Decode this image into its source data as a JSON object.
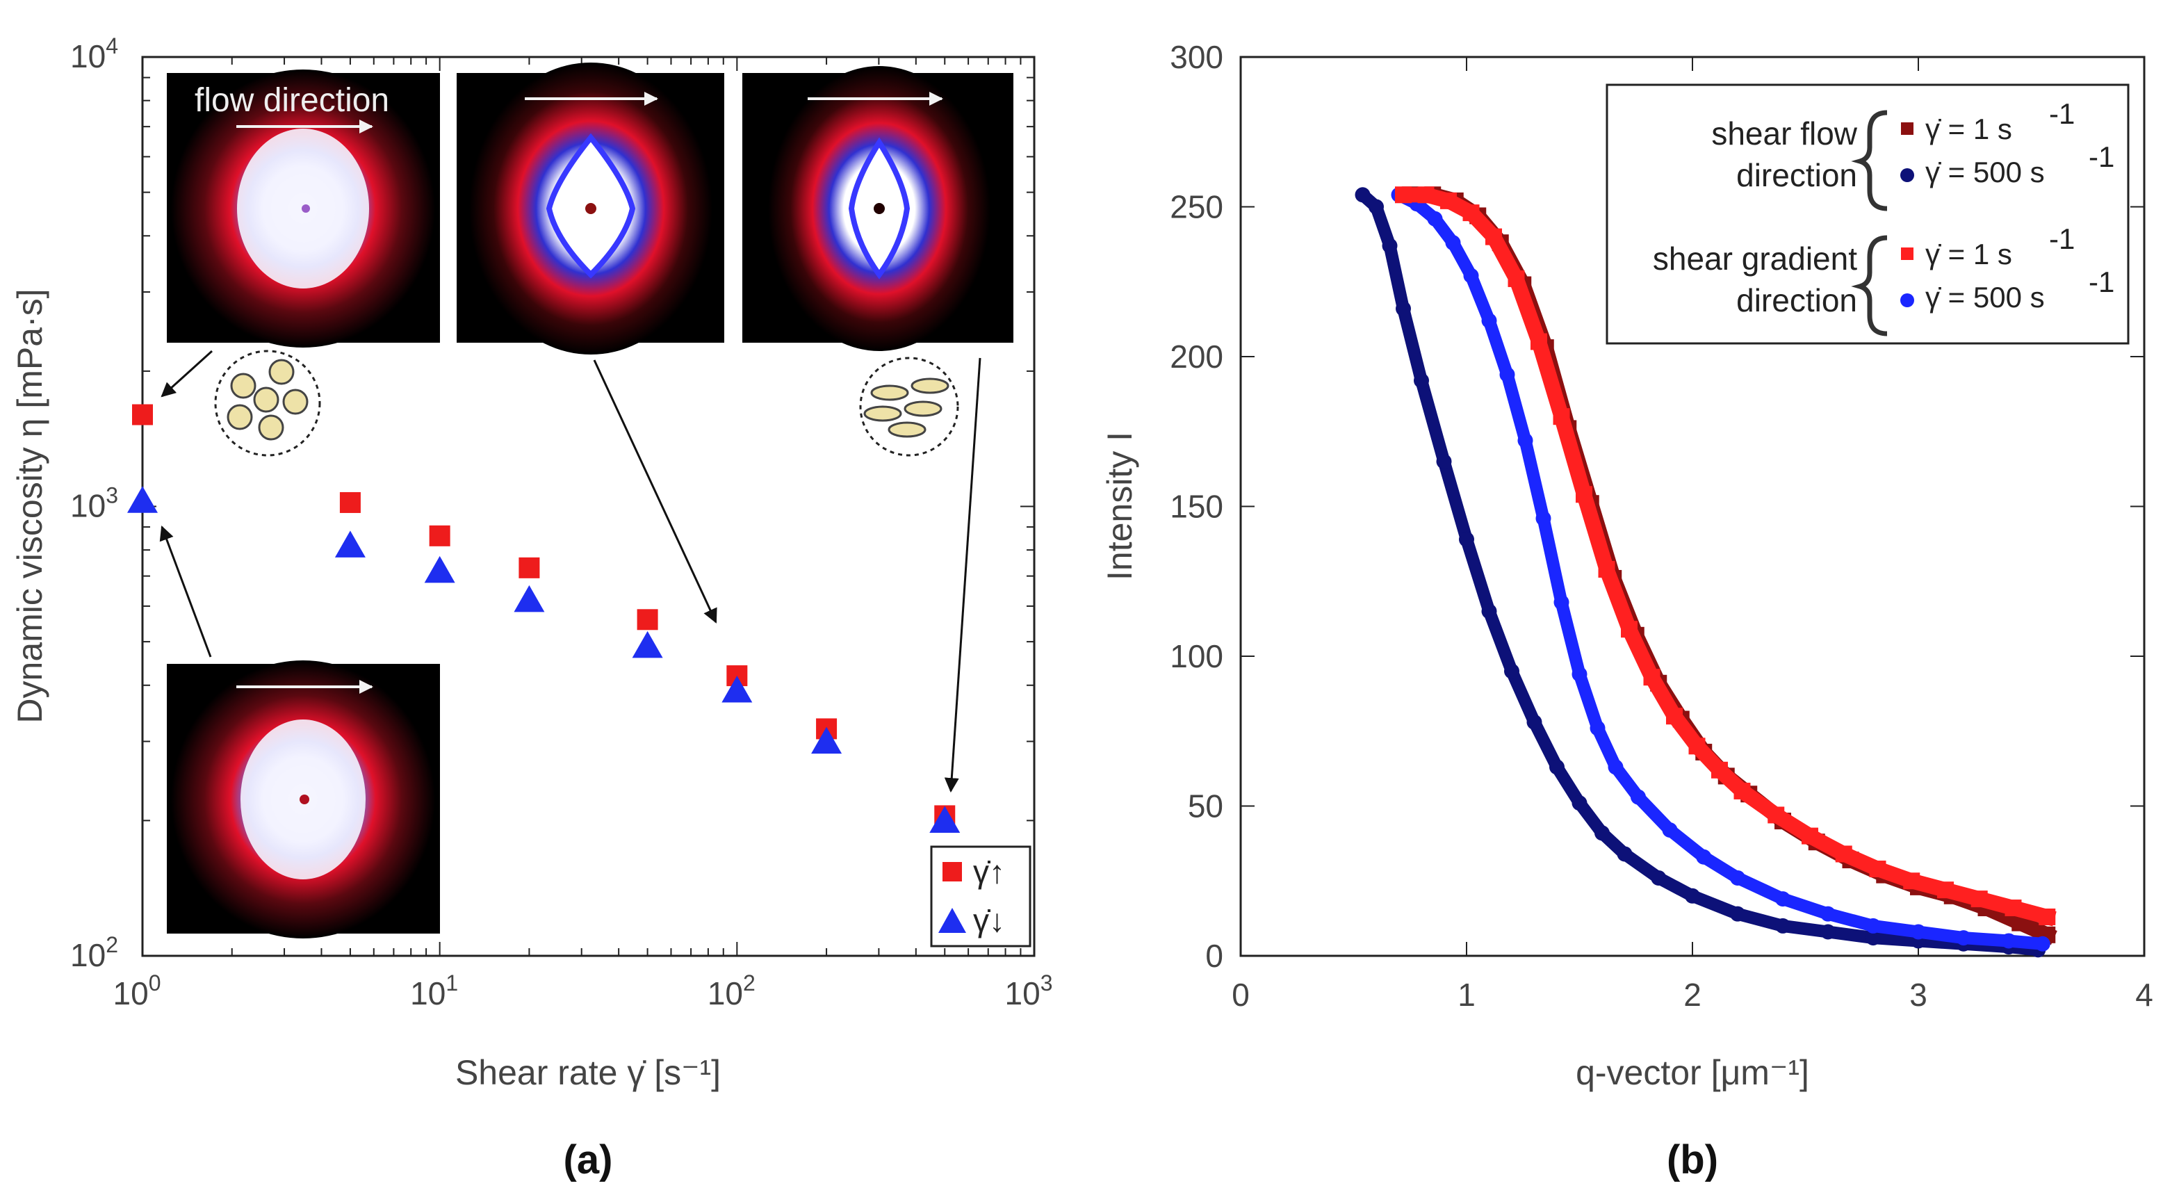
{
  "chart_data": [
    {
      "type": "scatter",
      "panel": "(a)",
      "xlabel": "Shear rate γ̇ [s⁻¹]",
      "ylabel": "Dynamic viscosity η [mPa·s]",
      "xscale": "log",
      "yscale": "log",
      "xlim": [
        1,
        1000
      ],
      "ylim": [
        100,
        10000
      ],
      "x_ticks": [
        "10^0",
        "10^1",
        "10^2",
        "10^3"
      ],
      "y_ticks": [
        "10^2",
        "10^3",
        "10^4"
      ],
      "inset_caption": "flow direction",
      "series": [
        {
          "name": "γ̇↑",
          "marker": "square",
          "color": "#ee1c1c",
          "x": [
            1,
            5,
            10,
            20,
            50,
            100,
            200,
            500
          ],
          "y": [
            1600,
            1020,
            860,
            730,
            560,
            420,
            320,
            205
          ]
        },
        {
          "name": "γ̇↓",
          "marker": "triangle",
          "color": "#1e2ef0",
          "x": [
            1,
            5,
            10,
            20,
            50,
            100,
            200,
            500
          ],
          "y": [
            1030,
            820,
            720,
            620,
            490,
            390,
            300,
            200
          ]
        }
      ]
    },
    {
      "type": "line",
      "panel": "(b)",
      "xlabel": "q-vector [μm⁻¹]",
      "ylabel": "Intensity I",
      "xlim": [
        0,
        4
      ],
      "ylim": [
        0,
        300
      ],
      "x_ticks": [
        "0",
        "1",
        "2",
        "3",
        "4"
      ],
      "y_ticks": [
        "0",
        "50",
        "100",
        "150",
        "200",
        "250",
        "300"
      ],
      "legend_groups": [
        {
          "label_line1": "shear flow",
          "label_line2": "direction"
        },
        {
          "label_line1": "shear gradient",
          "label_line2": "direction"
        }
      ],
      "series": [
        {
          "name": "shear flow γ̇ = 1 s⁻¹",
          "legend_label": "γ̇ = 1 s",
          "legend_sup": "-1",
          "marker": "square",
          "color": "#8b1010",
          "x": [
            0.75,
            0.85,
            0.95,
            1.05,
            1.15,
            1.25,
            1.35,
            1.45,
            1.55,
            1.65,
            1.75,
            1.85,
            1.95,
            2.05,
            2.15,
            2.25,
            2.4,
            2.55,
            2.7,
            2.85,
            3.0,
            3.15,
            3.3,
            3.45,
            3.57
          ],
          "y": [
            254,
            254,
            252,
            247,
            238,
            224,
            203,
            176,
            151,
            126,
            107,
            91,
            79,
            68,
            60,
            54,
            45,
            38,
            32,
            27,
            23,
            20,
            16,
            11,
            7
          ]
        },
        {
          "name": "shear flow γ̇ = 500 s⁻¹",
          "legend_label": "γ̇ = 500 s",
          "legend_sup": "-1",
          "marker": "circle",
          "color": "#0d1178",
          "x": [
            0.54,
            0.6,
            0.66,
            0.72,
            0.8,
            0.9,
            1.0,
            1.1,
            1.2,
            1.3,
            1.4,
            1.5,
            1.6,
            1.7,
            1.85,
            2.0,
            2.2,
            2.4,
            2.6,
            2.8,
            3.0,
            3.2,
            3.4,
            3.53
          ],
          "y": [
            254,
            250,
            237,
            216,
            192,
            165,
            139,
            115,
            95,
            78,
            63,
            51,
            41,
            34,
            26,
            20,
            14,
            10,
            8,
            6,
            5,
            4,
            3,
            2
          ]
        },
        {
          "name": "shear gradient γ̇ = 1 s⁻¹",
          "legend_label": "γ̇ = 1 s",
          "legend_sup": "-1",
          "marker": "square",
          "color": "#ff2020",
          "x": [
            0.72,
            0.82,
            0.92,
            1.02,
            1.12,
            1.22,
            1.32,
            1.42,
            1.52,
            1.62,
            1.72,
            1.82,
            1.92,
            2.02,
            2.12,
            2.22,
            2.37,
            2.52,
            2.67,
            2.82,
            2.97,
            3.12,
            3.27,
            3.42,
            3.57
          ],
          "y": [
            254,
            254,
            252,
            248,
            240,
            226,
            205,
            180,
            154,
            129,
            109,
            93,
            80,
            70,
            62,
            55,
            47,
            40,
            34,
            29,
            25,
            22,
            19,
            16,
            13
          ]
        },
        {
          "name": "shear gradient γ̇ = 500 s⁻¹",
          "legend_label": "γ̇ = 500 s",
          "legend_sup": "-1",
          "marker": "circle",
          "color": "#1a26ff",
          "x": [
            0.7,
            0.78,
            0.86,
            0.94,
            1.02,
            1.1,
            1.18,
            1.26,
            1.34,
            1.42,
            1.5,
            1.58,
            1.66,
            1.76,
            1.9,
            2.05,
            2.2,
            2.4,
            2.6,
            2.8,
            3.0,
            3.2,
            3.4,
            3.55
          ],
          "y": [
            254,
            251,
            246,
            238,
            227,
            212,
            194,
            172,
            146,
            118,
            94,
            76,
            63,
            53,
            42,
            33,
            26,
            19,
            14,
            10,
            8,
            6,
            5,
            4
          ]
        }
      ]
    }
  ]
}
